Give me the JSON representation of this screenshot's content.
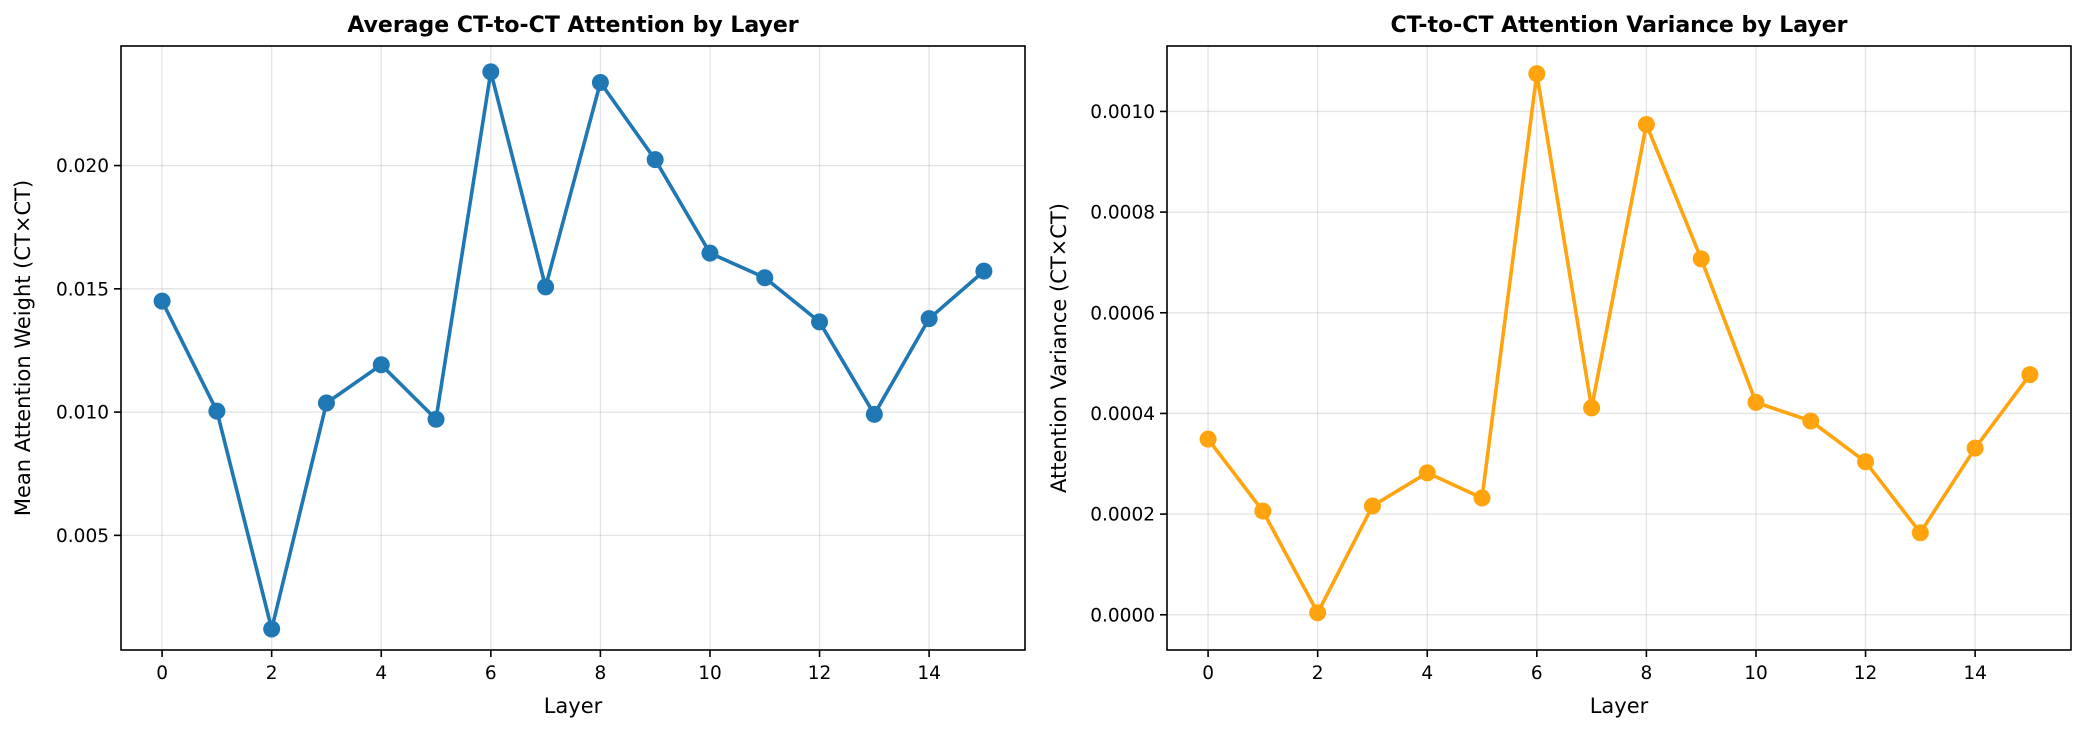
{
  "chart_data": [
    {
      "type": "line",
      "title": "Average CT-to-CT Attention by Layer",
      "xlabel": "Layer",
      "ylabel": "Mean Attention Weight (CT×CT)",
      "xlim": [
        -0.75,
        15.75
      ],
      "ylim": [
        0.00035,
        0.02485
      ],
      "xticks": [
        0,
        2,
        4,
        6,
        8,
        10,
        12,
        14
      ],
      "xtick_labels": [
        "0",
        "2",
        "4",
        "6",
        "8",
        "10",
        "12",
        "14"
      ],
      "yticks": [
        0.005,
        0.01,
        0.015,
        0.02
      ],
      "ytick_labels": [
        "0.005",
        "0.010",
        "0.015",
        "0.020"
      ],
      "grid": true,
      "color": "#1f77b4",
      "series": [
        {
          "x": [
            0,
            1,
            2,
            3,
            4,
            5,
            6,
            7,
            8,
            9,
            10,
            11,
            12,
            13,
            14,
            15
          ],
          "values": [
            0.0145,
            0.01004,
            0.0012,
            0.01037,
            0.01192,
            0.00971,
            0.0238,
            0.01508,
            0.02337,
            0.02024,
            0.01645,
            0.01545,
            0.01366,
            0.00991,
            0.01379,
            0.01572
          ]
        }
      ]
    },
    {
      "type": "line",
      "title": "CT-to-CT Attention Variance by Layer",
      "xlabel": "Layer",
      "ylabel": "Attention Variance (CT×CT)",
      "xlim": [
        -0.75,
        15.75
      ],
      "ylim": [
        -7e-05,
        0.00113
      ],
      "xticks": [
        0,
        2,
        4,
        6,
        8,
        10,
        12,
        14
      ],
      "xtick_labels": [
        "0",
        "2",
        "4",
        "6",
        "8",
        "10",
        "12",
        "14"
      ],
      "yticks": [
        0.0,
        0.0002,
        0.0004,
        0.0006,
        0.0008,
        0.001
      ],
      "ytick_labels": [
        "0.0000",
        "0.0002",
        "0.0004",
        "0.0006",
        "0.0008",
        "0.0010"
      ],
      "grid": true,
      "color": "#ffa40f",
      "series": [
        {
          "x": [
            0,
            1,
            2,
            3,
            4,
            5,
            6,
            7,
            8,
            9,
            10,
            11,
            12,
            13,
            14,
            15
          ],
          "values": [
            0.000349,
            0.000206,
            4e-06,
            0.000216,
            0.000282,
            0.000232,
            0.001075,
            0.000411,
            0.000974,
            0.000707,
            0.000422,
            0.000385,
            0.000304,
            0.000163,
            0.000331,
            0.000477
          ]
        }
      ]
    }
  ]
}
